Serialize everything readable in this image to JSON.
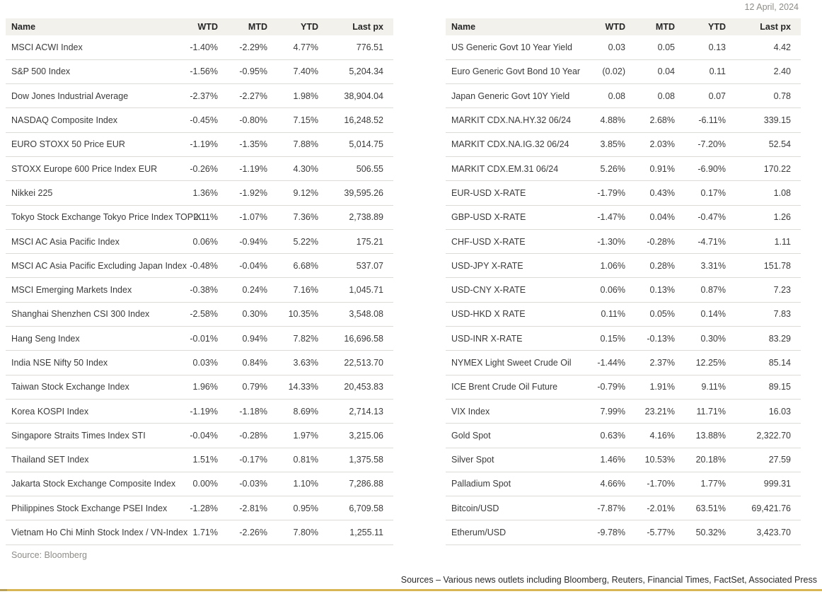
{
  "date": "12 April, 2024",
  "left_table": {
    "headers": {
      "name": "Name",
      "wtd": "WTD",
      "mtd": "MTD",
      "ytd": "YTD",
      "last": "Last px"
    },
    "rows": [
      {
        "name": "MSCI ACWI Index",
        "wtd": "-1.40%",
        "mtd": "-2.29%",
        "ytd": "4.77%",
        "last": "776.51"
      },
      {
        "name": "S&P 500 Index",
        "wtd": "-1.56%",
        "mtd": "-0.95%",
        "ytd": "7.40%",
        "last": "5,204.34"
      },
      {
        "name": "Dow Jones Industrial Average",
        "wtd": "-2.37%",
        "mtd": "-2.27%",
        "ytd": "1.98%",
        "last": "38,904.04"
      },
      {
        "name": "NASDAQ Composite Index",
        "wtd": "-0.45%",
        "mtd": "-0.80%",
        "ytd": "7.15%",
        "last": "16,248.52"
      },
      {
        "name": "EURO STOXX 50 Price EUR",
        "wtd": "-1.19%",
        "mtd": "-1.35%",
        "ytd": "7.88%",
        "last": "5,014.75"
      },
      {
        "name": "STOXX Europe 600 Price Index EUR",
        "wtd": "-0.26%",
        "mtd": "-1.19%",
        "ytd": "4.30%",
        "last": "506.55"
      },
      {
        "name": "Nikkei 225",
        "wtd": "1.36%",
        "mtd": "-1.92%",
        "ytd": "9.12%",
        "last": "39,595.26"
      },
      {
        "name": "Tokyo Stock Exchange Tokyo Price Index TOPIX",
        "wtd": "2.11%",
        "mtd": "-1.07%",
        "ytd": "7.36%",
        "last": "2,738.89"
      },
      {
        "name": "MSCI AC Asia Pacific Index",
        "wtd": "0.06%",
        "mtd": "-0.94%",
        "ytd": "5.22%",
        "last": "175.21"
      },
      {
        "name": "MSCI AC Asia Pacific Excluding Japan Index",
        "wtd": "-0.48%",
        "mtd": "-0.04%",
        "ytd": "6.68%",
        "last": "537.07"
      },
      {
        "name": "MSCI Emerging Markets Index",
        "wtd": "-0.38%",
        "mtd": "0.24%",
        "ytd": "7.16%",
        "last": "1,045.71"
      },
      {
        "name": "Shanghai Shenzhen CSI 300 Index",
        "wtd": "-2.58%",
        "mtd": "0.30%",
        "ytd": "10.35%",
        "last": "3,548.08"
      },
      {
        "name": "Hang Seng Index",
        "wtd": "-0.01%",
        "mtd": "0.94%",
        "ytd": "7.82%",
        "last": "16,696.58"
      },
      {
        "name": "India NSE Nifty 50 Index",
        "wtd": "0.03%",
        "mtd": "0.84%",
        "ytd": "3.63%",
        "last": "22,513.70"
      },
      {
        "name": "Taiwan Stock Exchange Index",
        "wtd": "1.96%",
        "mtd": "0.79%",
        "ytd": "14.33%",
        "last": "20,453.83"
      },
      {
        "name": "Korea KOSPI Index",
        "wtd": "-1.19%",
        "mtd": "-1.18%",
        "ytd": "8.69%",
        "last": "2,714.13"
      },
      {
        "name": "Singapore Straits Times Index STI",
        "wtd": "-0.04%",
        "mtd": "-0.28%",
        "ytd": "1.97%",
        "last": "3,215.06"
      },
      {
        "name": "Thailand SET Index",
        "wtd": "1.51%",
        "mtd": "-0.17%",
        "ytd": "0.81%",
        "last": "1,375.58"
      },
      {
        "name": "Jakarta Stock Exchange Composite Index",
        "wtd": "0.00%",
        "mtd": "-0.03%",
        "ytd": "1.10%",
        "last": "7,286.88"
      },
      {
        "name": "Philippines Stock Exchange PSEI Index",
        "wtd": "-1.28%",
        "mtd": "-2.81%",
        "ytd": "0.95%",
        "last": "6,709.58"
      },
      {
        "name": "Vietnam Ho Chi Minh Stock Index / VN-Index",
        "wtd": "1.71%",
        "mtd": "-2.26%",
        "ytd": "7.80%",
        "last": "1,255.11"
      }
    ],
    "source": "Source: Bloomberg"
  },
  "right_table": {
    "headers": {
      "name": "Name",
      "wtd": "WTD",
      "mtd": "MTD",
      "ytd": "YTD",
      "last": "Last px"
    },
    "rows": [
      {
        "name": "US Generic Govt 10 Year Yield",
        "wtd": "0.03",
        "mtd": "0.05",
        "ytd": "0.13",
        "last": "4.42"
      },
      {
        "name": "Euro Generic Govt Bond 10 Year",
        "wtd": "(0.02)",
        "mtd": "0.04",
        "ytd": "0.11",
        "last": "2.40"
      },
      {
        "name": "Japan Generic Govt 10Y Yield",
        "wtd": "0.08",
        "mtd": "0.08",
        "ytd": "0.07",
        "last": "0.78"
      },
      {
        "name": "MARKIT CDX.NA.HY.32 06/24",
        "wtd": "4.88%",
        "mtd": "2.68%",
        "ytd": "-6.11%",
        "last": "339.15"
      },
      {
        "name": "MARKIT CDX.NA.IG.32 06/24",
        "wtd": "3.85%",
        "mtd": "2.03%",
        "ytd": "-7.20%",
        "last": "52.54"
      },
      {
        "name": "MARKIT CDX.EM.31 06/24",
        "wtd": "5.26%",
        "mtd": "0.91%",
        "ytd": "-6.90%",
        "last": "170.22"
      },
      {
        "name": "EUR-USD X-RATE",
        "wtd": "-1.79%",
        "mtd": "0.43%",
        "ytd": "0.17%",
        "last": "1.08"
      },
      {
        "name": "GBP-USD X-RATE",
        "wtd": "-1.47%",
        "mtd": "0.04%",
        "ytd": "-0.47%",
        "last": "1.26"
      },
      {
        "name": "CHF-USD X-RATE",
        "wtd": "-1.30%",
        "mtd": "-0.28%",
        "ytd": "-4.71%",
        "last": "1.11"
      },
      {
        "name": "USD-JPY X-RATE",
        "wtd": "1.06%",
        "mtd": "0.28%",
        "ytd": "3.31%",
        "last": "151.78"
      },
      {
        "name": "USD-CNY X-RATE",
        "wtd": "0.06%",
        "mtd": "0.13%",
        "ytd": "0.87%",
        "last": "7.23"
      },
      {
        "name": "USD-HKD X RATE",
        "wtd": "0.11%",
        "mtd": "0.05%",
        "ytd": "0.14%",
        "last": "7.83"
      },
      {
        "name": "USD-INR X-RATE",
        "wtd": "0.15%",
        "mtd": "-0.13%",
        "ytd": "0.30%",
        "last": "83.29"
      },
      {
        "name": "NYMEX Light Sweet Crude Oil",
        "wtd": "-1.44%",
        "mtd": "2.37%",
        "ytd": "12.25%",
        "last": "85.14"
      },
      {
        "name": "ICE Brent Crude Oil Future",
        "wtd": "-0.79%",
        "mtd": "1.91%",
        "ytd": "9.11%",
        "last": "89.15"
      },
      {
        "name": "VIX Index",
        "wtd": "7.99%",
        "mtd": "23.21%",
        "ytd": "11.71%",
        "last": "16.03"
      },
      {
        "name": "Gold Spot",
        "wtd": "0.63%",
        "mtd": "4.16%",
        "ytd": "13.88%",
        "last": "2,322.70"
      },
      {
        "name": "Silver Spot",
        "wtd": "1.46%",
        "mtd": "10.53%",
        "ytd": "20.18%",
        "last": "27.59"
      },
      {
        "name": "Palladium Spot",
        "wtd": "4.66%",
        "mtd": "-1.70%",
        "ytd": "1.77%",
        "last": "999.31"
      },
      {
        "name": "Bitcoin/USD",
        "wtd": "-7.87%",
        "mtd": "-2.01%",
        "ytd": "63.51%",
        "last": "69,421.76"
      },
      {
        "name": "Etherum/USD",
        "wtd": "-9.78%",
        "mtd": "-5.77%",
        "ytd": "50.32%",
        "last": "3,423.70"
      }
    ]
  },
  "footer": {
    "sources": "Sources – Various news outlets including Bloomberg, Reuters, Financial Times, FactSet, Associated Press"
  },
  "colors": {
    "header_bg": "#f2f1ec",
    "row_border": "#dcdbd7",
    "accent_gold": "#d8b654",
    "accent_gold_dark": "#b9a058",
    "muted_text": "#8e8c87"
  }
}
